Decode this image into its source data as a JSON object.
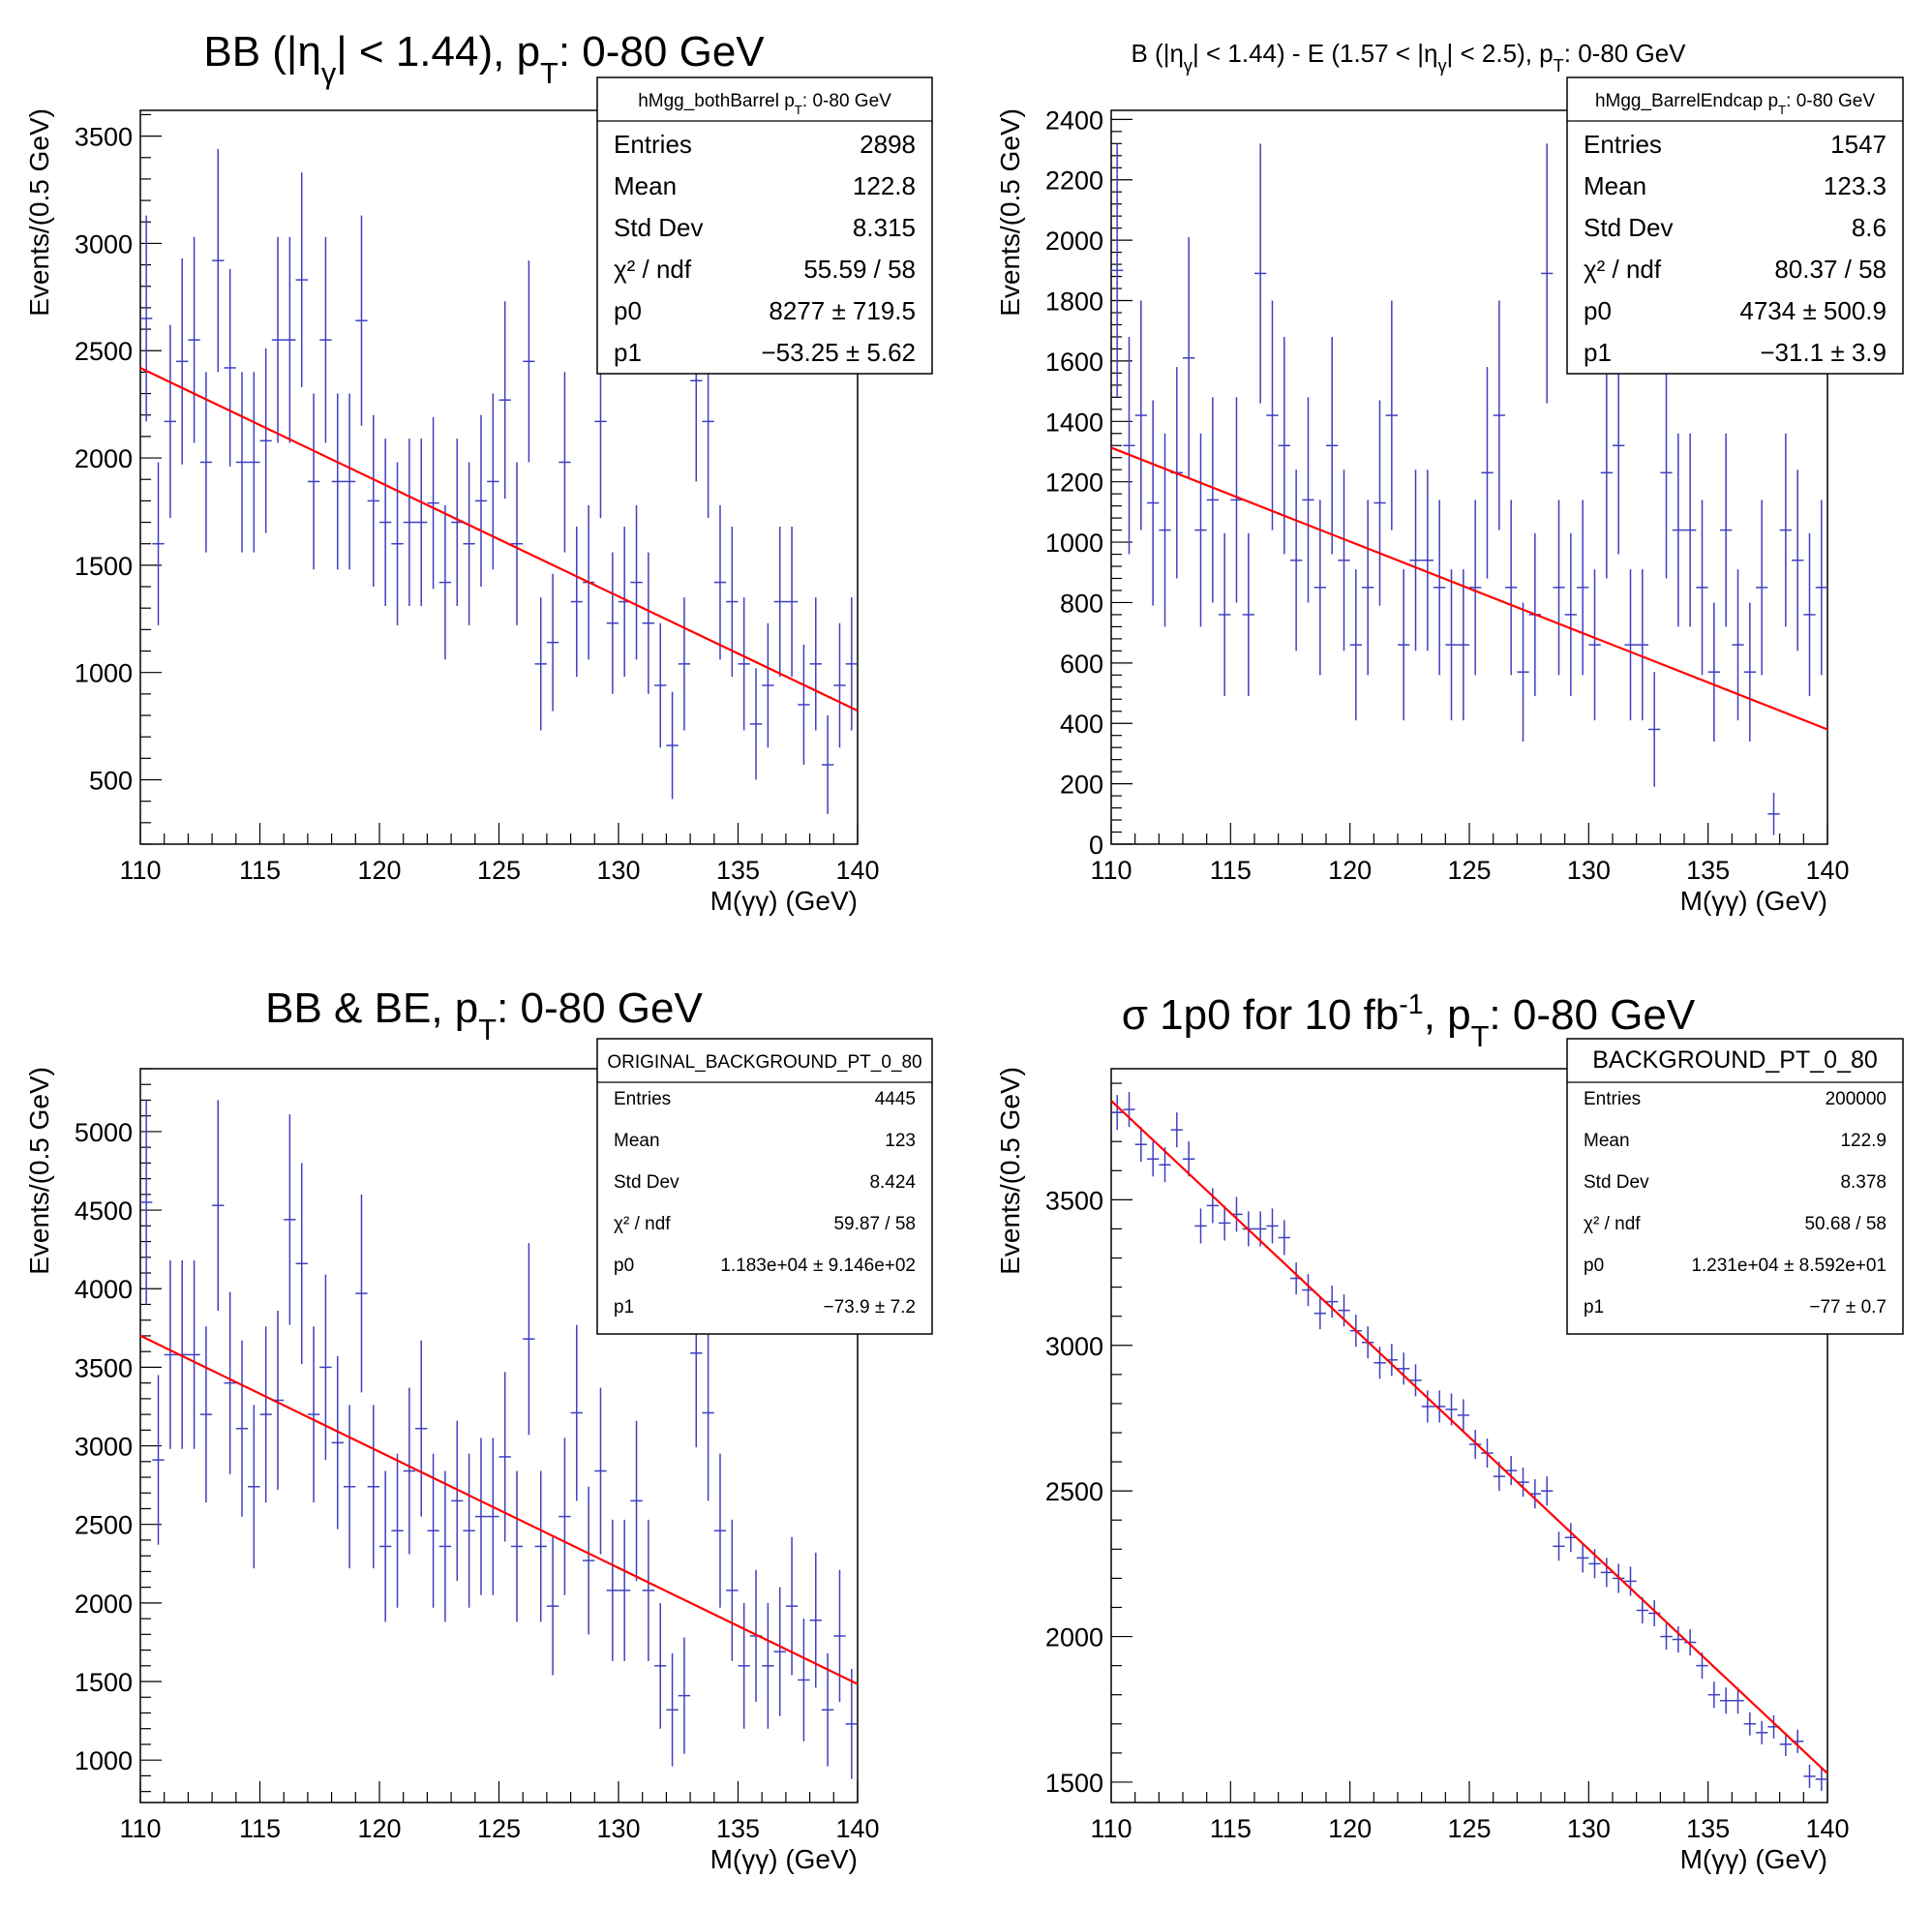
{
  "chart_data": [
    {
      "type": "scatter",
      "title": "BB (|η",
      "title_sub1": "γ",
      "title_mid": "| < 1.44), p",
      "title_sub2": "T",
      "title_tail": ": 0-80 GeV",
      "xlabel": "M(γγ) (GeV)",
      "ylabel": "Events/(0.5 GeV)",
      "xlim": [
        110,
        140
      ],
      "ylim": [
        200,
        3620
      ],
      "xticks": [
        "110",
        "115",
        "120",
        "125",
        "130",
        "135",
        "140"
      ],
      "yticks": [
        "500",
        "1000",
        "1500",
        "2000",
        "2500",
        "3000",
        "3500"
      ],
      "stats": {
        "name": "hMgg_bothBarrel p",
        "name_sub": "T",
        "name_tail": ": 0-80 GeV",
        "rows": [
          {
            "label": "Entries",
            "value": "2898"
          },
          {
            "label": "Mean",
            "value": "122.8"
          },
          {
            "label": "Std Dev",
            "value": "8.315"
          },
          {
            "label": "χ² / ndf",
            "value": "55.59 / 58"
          },
          {
            "label": "p0",
            "value": "8277 ± 719.5"
          },
          {
            "label": "p1",
            "value": "−53.25 ± 5.62"
          }
        ]
      },
      "fit": {
        "p0": 8277,
        "p1": -53.25
      },
      "series": [
        {
          "x": [
            110.25,
            110.75,
            111.25,
            111.75,
            112.25,
            112.75,
            113.25,
            113.75,
            114.25,
            114.75,
            115.25,
            115.75,
            116.25,
            116.75,
            117.25,
            117.75,
            118.25,
            118.75,
            119.25,
            119.75,
            120.25,
            120.75,
            121.25,
            121.75,
            122.25,
            122.75,
            123.25,
            123.75,
            124.25,
            124.75,
            125.25,
            125.75,
            126.25,
            126.75,
            127.25,
            127.75,
            128.25,
            128.75,
            129.25,
            129.75,
            130.25,
            130.75,
            131.25,
            131.75,
            132.25,
            132.75,
            133.25,
            133.75,
            134.25,
            134.75,
            135.25,
            135.75,
            136.25,
            136.75,
            137.25,
            137.75,
            138.25,
            138.75,
            139.25,
            139.75
          ],
          "y": [
            2650,
            1600,
            2170,
            2450,
            2550,
            1980,
            2920,
            2420,
            1980,
            1980,
            2080,
            2550,
            2550,
            2830,
            1890,
            2550,
            1890,
            1890,
            2640,
            1800,
            1700,
            1600,
            1700,
            1700,
            1790,
            1420,
            1700,
            1600,
            1800,
            1890,
            2270,
            1600,
            2450,
            1040,
            1140,
            1980,
            1330,
            1420,
            2170,
            1230,
            1330,
            1420,
            1230,
            940,
            660,
            1040,
            2360,
            2170,
            1420,
            1330,
            1040,
            760,
            940,
            1330,
            1330,
            850,
            1040,
            570,
            940,
            1040
          ],
          "err": [
            480,
            380,
            450,
            480,
            480,
            420,
            520,
            460,
            420,
            420,
            430,
            480,
            480,
            500,
            410,
            480,
            410,
            410,
            490,
            400,
            390,
            380,
            390,
            390,
            400,
            360,
            390,
            380,
            400,
            410,
            460,
            380,
            470,
            310,
            320,
            420,
            350,
            360,
            450,
            330,
            350,
            360,
            330,
            290,
            250,
            310,
            470,
            450,
            360,
            350,
            310,
            260,
            290,
            350,
            350,
            280,
            310,
            230,
            290,
            310
          ]
        }
      ]
    },
    {
      "type": "scatter",
      "title": "B (|η",
      "title_sub1": "γ",
      "title_mid": "| < 1.44) - E (1.57 < |η",
      "title_sub2": "γ",
      "title_mid2": "| < 2.5), p",
      "title_sub3": "T",
      "title_tail": ": 0-80 GeV",
      "xlabel": "M(γγ) (GeV)",
      "ylabel": "Events/(0.5 GeV)",
      "xlim": [
        110,
        140
      ],
      "ylim": [
        0,
        2430
      ],
      "xticks": [
        "110",
        "115",
        "120",
        "125",
        "130",
        "135",
        "140"
      ],
      "yticks": [
        "0",
        "200",
        "400",
        "600",
        "800",
        "1000",
        "1200",
        "1400",
        "1600",
        "1800",
        "2000",
        "2200",
        "2400"
      ],
      "stats": {
        "name": "hMgg_BarrelEndcap p",
        "name_sub": "T",
        "name_tail": ": 0-80 GeV",
        "rows": [
          {
            "label": "Entries",
            "value": "1547"
          },
          {
            "label": "Mean",
            "value": "123.3"
          },
          {
            "label": "Std Dev",
            "value": "8.6"
          },
          {
            "label": "χ² / ndf",
            "value": "80.37 / 58"
          },
          {
            "label": "p0",
            "value": "4734 ± 500.9"
          },
          {
            "label": "p1",
            "value": "−31.1 ± 3.9"
          }
        ]
      },
      "fit": {
        "p0": 4734,
        "p1": -31.1
      },
      "series": [
        {
          "x": [
            110.25,
            110.75,
            111.25,
            111.75,
            112.25,
            112.75,
            113.25,
            113.75,
            114.25,
            114.75,
            115.25,
            115.75,
            116.25,
            116.75,
            117.25,
            117.75,
            118.25,
            118.75,
            119.25,
            119.75,
            120.25,
            120.75,
            121.25,
            121.75,
            122.25,
            122.75,
            123.25,
            123.75,
            124.25,
            124.75,
            125.25,
            125.75,
            126.25,
            126.75,
            127.25,
            127.75,
            128.25,
            128.75,
            129.25,
            129.75,
            130.25,
            130.75,
            131.25,
            131.75,
            132.25,
            132.75,
            133.25,
            133.75,
            134.25,
            134.75,
            135.25,
            135.75,
            136.25,
            136.75,
            137.25,
            137.75,
            138.25,
            138.75,
            139.25,
            139.75
          ],
          "y": [
            1900,
            1320,
            1420,
            1130,
            1040,
            1230,
            1610,
            1040,
            1140,
            760,
            1140,
            760,
            1890,
            1420,
            1320,
            940,
            1140,
            850,
            1320,
            940,
            660,
            850,
            1130,
            1420,
            660,
            940,
            940,
            850,
            660,
            660,
            850,
            1230,
            1420,
            850,
            570,
            760,
            1890,
            850,
            760,
            850,
            660,
            1230,
            1320,
            660,
            660,
            380,
            1230,
            1040,
            1040,
            850,
            570,
            1040,
            660,
            570,
            850,
            100,
            1040,
            940,
            760,
            850
          ],
          "err": [
            420,
            360,
            380,
            340,
            320,
            350,
            400,
            320,
            340,
            270,
            340,
            270,
            430,
            380,
            360,
            300,
            340,
            290,
            360,
            300,
            250,
            290,
            340,
            380,
            250,
            300,
            300,
            290,
            250,
            250,
            290,
            350,
            380,
            290,
            230,
            270,
            430,
            290,
            270,
            290,
            250,
            350,
            360,
            250,
            250,
            190,
            350,
            320,
            320,
            290,
            230,
            320,
            250,
            230,
            290,
            70,
            320,
            300,
            270,
            290
          ]
        }
      ]
    },
    {
      "type": "scatter",
      "title": "BB & BE, p",
      "title_sub1": "T",
      "title_tail": ": 0-80 GeV",
      "xlabel": "M(γγ) (GeV)",
      "ylabel": "Events/(0.5 GeV)",
      "xlim": [
        110,
        140
      ],
      "ylim": [
        730,
        5400
      ],
      "xticks": [
        "110",
        "115",
        "120",
        "125",
        "130",
        "135",
        "140"
      ],
      "yticks": [
        "1000",
        "1500",
        "2000",
        "2500",
        "3000",
        "3500",
        "4000",
        "4500",
        "5000"
      ],
      "stats": {
        "name": "ORIGINAL_BACKGROUND_PT_0_80",
        "rows": [
          {
            "label": "Entries",
            "value": "4445"
          },
          {
            "label": "Mean",
            "value": "123"
          },
          {
            "label": "Std Dev",
            "value": "8.424"
          },
          {
            "label": "χ² / ndf",
            "value": "59.87 / 58"
          },
          {
            "label": "p0",
            "value": "1.183e+04 ± 9.146e+02"
          },
          {
            "label": "p1",
            "value": "−73.9 ± 7.2"
          }
        ]
      },
      "fit": {
        "p0": 11830,
        "p1": -73.9
      },
      "series": [
        {
          "x": [
            110.25,
            110.75,
            111.25,
            111.75,
            112.25,
            112.75,
            113.25,
            113.75,
            114.25,
            114.75,
            115.25,
            115.75,
            116.25,
            116.75,
            117.25,
            117.75,
            118.25,
            118.75,
            119.25,
            119.75,
            120.25,
            120.75,
            121.25,
            121.75,
            122.25,
            122.75,
            123.25,
            123.75,
            124.25,
            124.75,
            125.25,
            125.75,
            126.25,
            126.75,
            127.25,
            127.75,
            128.25,
            128.75,
            129.25,
            129.75,
            130.25,
            130.75,
            131.25,
            131.75,
            132.25,
            132.75,
            133.25,
            133.75,
            134.25,
            134.75,
            135.25,
            135.75,
            136.25,
            136.75,
            137.25,
            137.75,
            138.25,
            138.75,
            139.25,
            139.75
          ],
          "y": [
            4550,
            2910,
            3580,
            3580,
            3580,
            3200,
            4530,
            3400,
            3110,
            2740,
            3200,
            3290,
            4440,
            4160,
            3200,
            3500,
            3020,
            2740,
            3970,
            2740,
            2360,
            2460,
            2840,
            3110,
            2460,
            2360,
            2650,
            2460,
            2550,
            2550,
            2930,
            2360,
            3680,
            2360,
            1980,
            2550,
            3210,
            2270,
            2840,
            2080,
            2080,
            2650,
            2080,
            1600,
            1320,
            1410,
            3590,
            3210,
            2460,
            2080,
            1600,
            1790,
            1600,
            1690,
            1980,
            1510,
            1890,
            1320,
            1790,
            1230
          ],
          "err": [
            650,
            540,
            600,
            600,
            600,
            560,
            670,
            580,
            560,
            520,
            560,
            570,
            670,
            640,
            560,
            590,
            550,
            520,
            630,
            520,
            480,
            490,
            530,
            560,
            490,
            480,
            510,
            490,
            500,
            500,
            540,
            480,
            610,
            480,
            440,
            500,
            560,
            470,
            530,
            450,
            450,
            510,
            450,
            400,
            360,
            370,
            600,
            560,
            490,
            450,
            400,
            420,
            400,
            410,
            440,
            390,
            430,
            360,
            420,
            350
          ]
        }
      ]
    },
    {
      "type": "scatter",
      "title": "σ 1p0 for 10 fb",
      "title_sup": "-1",
      "title_mid": ", p",
      "title_sub1": "T",
      "title_tail": ": 0-80 GeV",
      "xlabel": "M(γγ) (GeV)",
      "ylabel": "Events/(0.5 GeV)",
      "xlim": [
        110,
        140
      ],
      "ylim": [
        1430,
        3950
      ],
      "xticks": [
        "110",
        "115",
        "120",
        "125",
        "130",
        "135",
        "140"
      ],
      "yticks": [
        "1500",
        "2000",
        "2500",
        "3000",
        "3500"
      ],
      "stats": {
        "name": "BACKGROUND_PT_0_80",
        "rows": [
          {
            "label": "Entries",
            "value": "200000"
          },
          {
            "label": "Mean",
            "value": "122.9"
          },
          {
            "label": "Std Dev",
            "value": "8.378"
          },
          {
            "label": "χ² / ndf",
            "value": "50.68 / 58"
          },
          {
            "label": "p0",
            "value": "1.231e+04 ± 8.592e+01"
          },
          {
            "label": "p1",
            "value": "−77 ± 0.7"
          }
        ]
      },
      "fit": {
        "p0": 12310,
        "p1": -77
      },
      "series": [
        {
          "x": [
            110.25,
            110.75,
            111.25,
            111.75,
            112.25,
            112.75,
            113.25,
            113.75,
            114.25,
            114.75,
            115.25,
            115.75,
            116.25,
            116.75,
            117.25,
            117.75,
            118.25,
            118.75,
            119.25,
            119.75,
            120.25,
            120.75,
            121.25,
            121.75,
            122.25,
            122.75,
            123.25,
            123.75,
            124.25,
            124.75,
            125.25,
            125.75,
            126.25,
            126.75,
            127.25,
            127.75,
            128.25,
            128.75,
            129.25,
            129.75,
            130.25,
            130.75,
            131.25,
            131.75,
            132.25,
            132.75,
            133.25,
            133.75,
            134.25,
            134.75,
            135.25,
            135.75,
            136.25,
            136.75,
            137.25,
            137.75,
            138.25,
            138.75,
            139.25,
            139.75
          ],
          "y": [
            3800,
            3810,
            3690,
            3640,
            3620,
            3740,
            3640,
            3410,
            3480,
            3420,
            3450,
            3400,
            3400,
            3410,
            3370,
            3230,
            3190,
            3110,
            3150,
            3120,
            3050,
            3010,
            2940,
            2950,
            2920,
            2880,
            2790,
            2790,
            2780,
            2760,
            2660,
            2630,
            2550,
            2570,
            2530,
            2490,
            2500,
            2310,
            2340,
            2270,
            2250,
            2220,
            2200,
            2190,
            2090,
            2080,
            2000,
            1990,
            1980,
            1900,
            1800,
            1780,
            1780,
            1700,
            1670,
            1690,
            1630,
            1640,
            1520,
            1510
          ],
          "err": [
            60,
            60,
            60,
            60,
            60,
            60,
            60,
            60,
            60,
            60,
            60,
            60,
            60,
            60,
            60,
            55,
            55,
            55,
            55,
            55,
            55,
            55,
            55,
            55,
            55,
            55,
            55,
            55,
            55,
            55,
            50,
            50,
            50,
            50,
            50,
            50,
            50,
            50,
            50,
            50,
            50,
            50,
            50,
            50,
            45,
            45,
            45,
            45,
            45,
            45,
            45,
            45,
            45,
            40,
            40,
            40,
            40,
            40,
            40,
            40
          ]
        }
      ]
    }
  ]
}
